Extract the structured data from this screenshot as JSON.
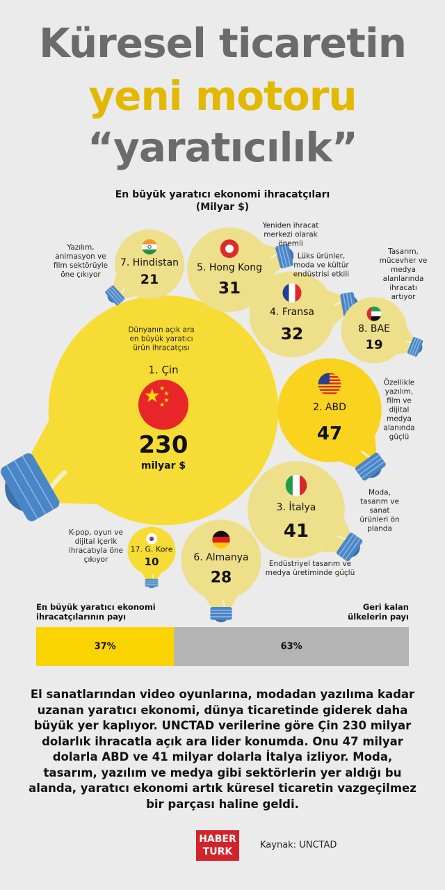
{
  "header": {
    "line1": "Küresel ticaretin",
    "line2": "yeni motoru",
    "line3": "“yaratıcılık”"
  },
  "chart_data": [
    {
      "type": "bubble",
      "title": "En büyük yaratıcı ekonomi ihracatçıları",
      "subtitle": "(Milyar $)",
      "categories": [
        "1. Çin",
        "2. ABD",
        "3. İtalya",
        "4. Fransa",
        "5. Hong Kong",
        "6. Almanya",
        "7. Hindistan",
        "8. BAE",
        "17. G. Kore"
      ],
      "values": [
        230,
        47,
        41,
        32,
        31,
        28,
        21,
        19,
        10
      ],
      "unit_label": "milyar $",
      "colors": [
        "#f7dc35",
        "#f9d31e",
        "#eedf8a",
        "#eedf8a",
        "#eedf8a",
        "#eedf8a",
        "#eedf8a",
        "#eedf8a",
        "#f7dc35"
      ],
      "notes": [
        "Dünyanın açık ara en büyük yaratıcı ürün ihracatçısı",
        "Özellikle yazılım, film ve dijital medya alanında güçlü",
        "Moda, tasarım ve sanat ürünleri ön planda",
        "Lüks ürünler, moda ve kültür endüstrisi etkili",
        "Yeniden ihracat merkezi olarak önemli",
        "Endüstriyel tasarım ve medya üretiminde güçlü",
        "Yazılım, animasyon ve film sektörüyle öne çıkıyor",
        "Tasarım, mücevher ve medya alanlarında ihracatı artıyor",
        "K-pop, oyun ve dijital içerik ihracatıyla öne çıkıyor"
      ]
    },
    {
      "type": "stacked-bar",
      "xlim": [
        0,
        100
      ],
      "series": [
        {
          "name": "En büyük yaratıcı ekonomi ihracatçılarının payı",
          "color": "#fad400",
          "values": [
            37
          ],
          "value_labels": [
            "37%"
          ]
        },
        {
          "name": "Geri kalan ülkelerin payı",
          "color": "#b4b4b4",
          "values": [
            63
          ],
          "value_labels": [
            "63%"
          ]
        }
      ]
    }
  ],
  "body": "El sanatlarından video oyunlarına, modadan yazılıma kadar uzanan yaratıcı ekonomi, dünya ticaretinde giderek daha büyük yer kaplıyor. UNCTAD verilerine göre Çin 230 milyar dolarlık ihracatla açık ara lider konumda. Onu 47 milyar dolarla ABD ve 41 milyar dolarla İtalya izliyor. Moda, tasarım, yazılım ve medya gibi sektörlerin yer aldığı bu alanda, yaratıcı ekonomi artık küresel ticaretin vazgeçilmez bir parçası haline geldi.",
  "footer": {
    "logo_line1": "HABER",
    "logo_line2": "TURK",
    "source": "Kaynak: UNCTAD"
  }
}
